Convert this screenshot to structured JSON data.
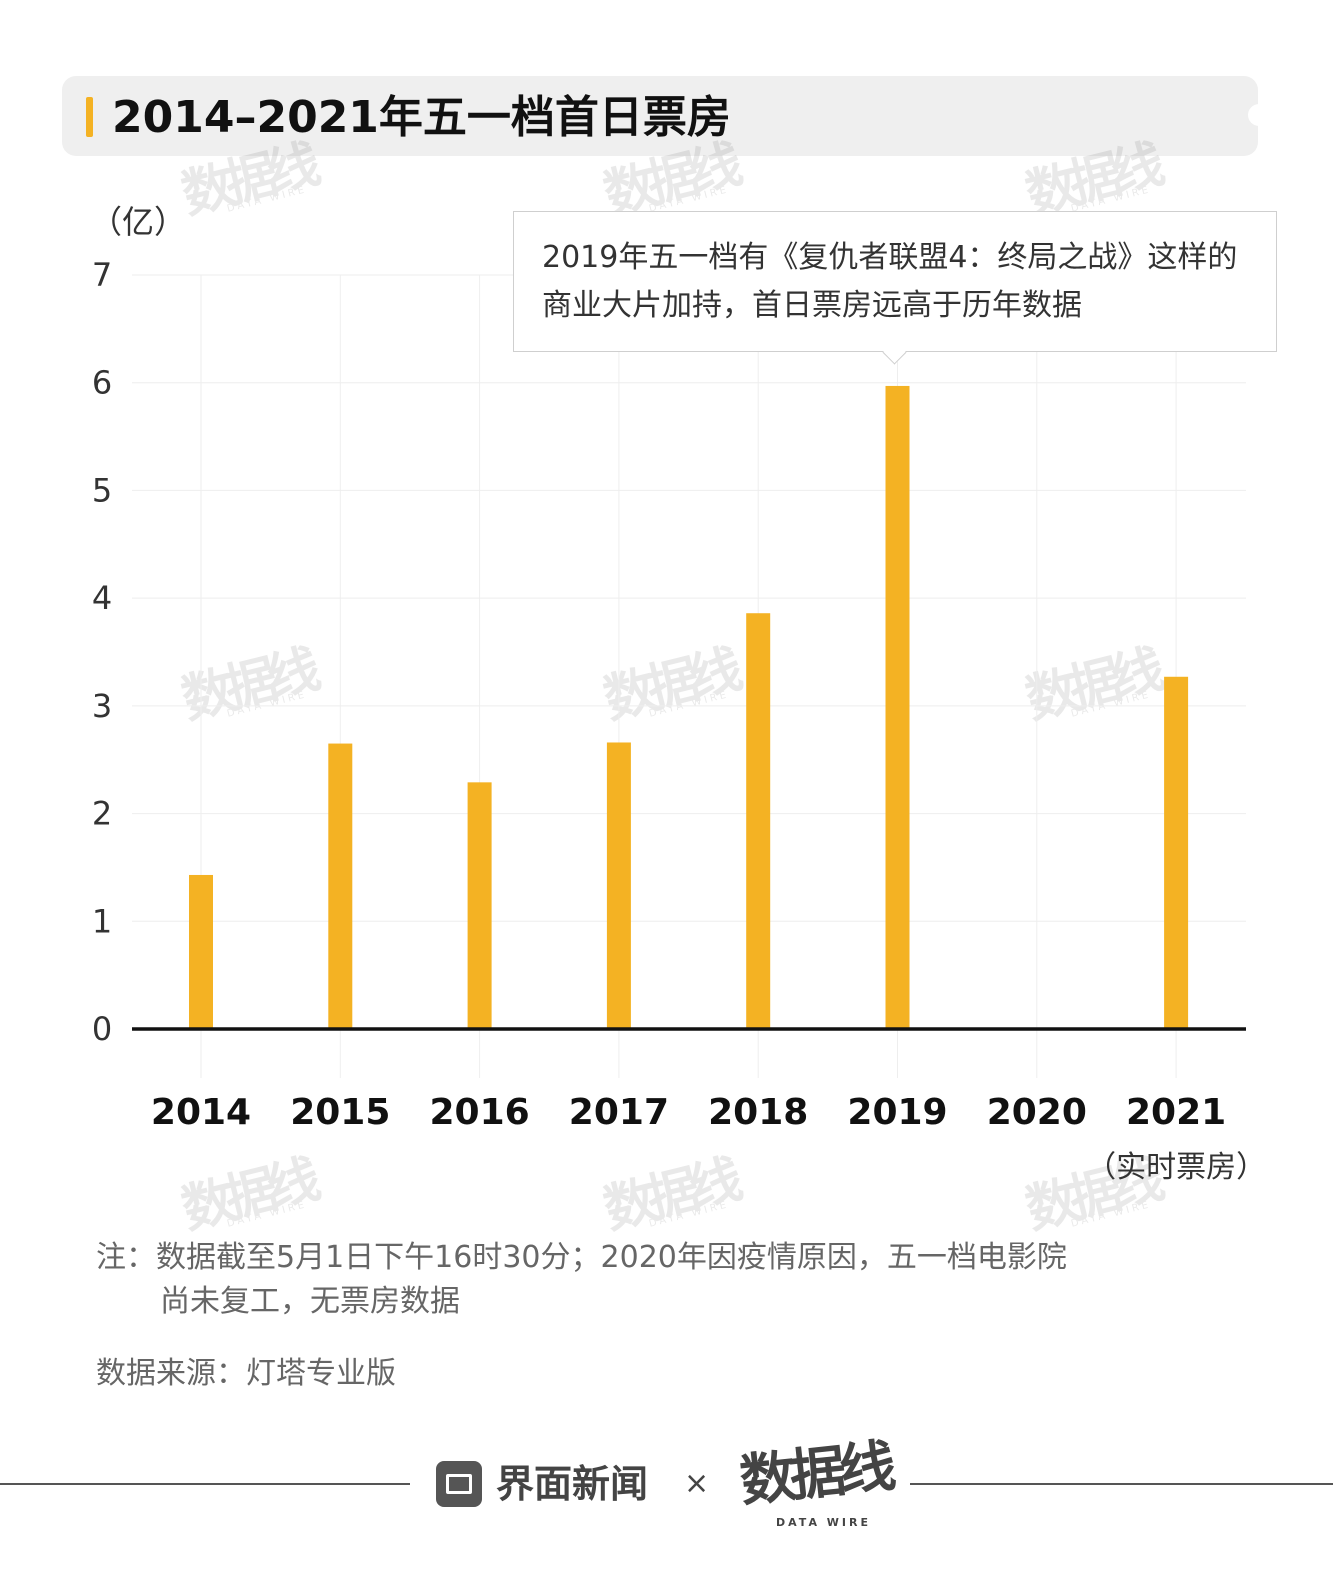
{
  "title": "2014–2021年五一档首日票房",
  "watermark": {
    "big": "数据线",
    "small": "DATA WIRE"
  },
  "annotation": "2019年五一档有《复仇者联盟4：终局之战》这样的商业大片加持，首日票房远高于历年数据",
  "note": {
    "line1": "注：数据截至5月1日下午16时30分；2020年因疫情原因，五一档电影院",
    "line2": "尚未复工，无票房数据"
  },
  "source": "数据来源：灯塔专业版",
  "footer": {
    "brand1": "界面新闻",
    "separator": "×",
    "brand2": "数据线",
    "brand2_sub": "DATA WIRE"
  },
  "colors": {
    "bar": "#f4b223",
    "axis": "#111111",
    "grid": "#eeeeee"
  },
  "chart_data": {
    "type": "bar",
    "title": "2014–2021年五一档首日票房",
    "unit_label": "（亿）",
    "ylabel": "亿",
    "xlabel": "",
    "categories": [
      "2014",
      "2015",
      "2016",
      "2017",
      "2018",
      "2019",
      "2020",
      "2021"
    ],
    "values": [
      1.43,
      2.65,
      2.29,
      2.66,
      3.86,
      5.97,
      null,
      3.27
    ],
    "x_sublabel": {
      "category": "2021",
      "text": "（实时票房）"
    },
    "ylim": [
      0,
      7
    ],
    "yticks": [
      0,
      1,
      2,
      3,
      4,
      5,
      6,
      7
    ],
    "grid": true
  }
}
